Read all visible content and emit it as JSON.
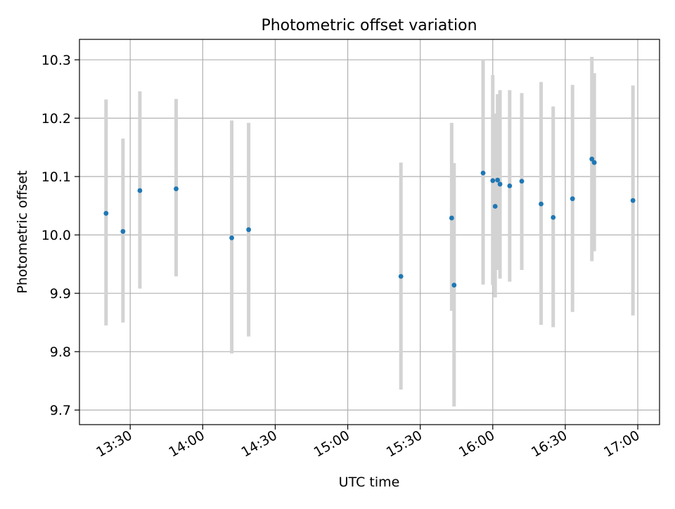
{
  "chart_data": {
    "type": "scatter",
    "title": "Photometric offset variation",
    "xlabel": "UTC time",
    "ylabel": "Photometric offset",
    "xlim": [
      "13:09",
      "17:09"
    ],
    "ylim": [
      9.675,
      10.335
    ],
    "grid": true,
    "x_ticks": [
      "13:30",
      "14:00",
      "14:30",
      "15:00",
      "15:30",
      "16:00",
      "16:30",
      "17:00"
    ],
    "y_ticks": [
      "9.7",
      "9.8",
      "9.9",
      "10.0",
      "10.1",
      "10.2",
      "10.3"
    ],
    "colors": {
      "point": "#1f77b4",
      "errorbar": "#d3d3d3",
      "grid": "#b0b0b0",
      "axes": "#000000"
    },
    "series": [
      {
        "points": [
          {
            "x": "13:20",
            "y": 10.037,
            "low": 9.845,
            "high": 10.232
          },
          {
            "x": "13:27",
            "y": 10.006,
            "low": 9.85,
            "high": 10.165
          },
          {
            "x": "13:34",
            "y": 10.076,
            "low": 9.908,
            "high": 10.246
          },
          {
            "x": "13:49",
            "y": 10.079,
            "low": 9.929,
            "high": 10.233
          },
          {
            "x": "14:12",
            "y": 9.995,
            "low": 9.797,
            "high": 10.196
          },
          {
            "x": "14:19",
            "y": 10.009,
            "low": 9.826,
            "high": 10.192
          },
          {
            "x": "15:22",
            "y": 9.929,
            "low": 9.735,
            "high": 10.124
          },
          {
            "x": "15:43",
            "y": 10.029,
            "low": 9.87,
            "high": 10.192
          },
          {
            "x": "15:44",
            "y": 9.914,
            "low": 9.706,
            "high": 10.123
          },
          {
            "x": "15:56",
            "y": 10.106,
            "low": 9.915,
            "high": 10.3
          },
          {
            "x": "16:00",
            "y": 10.093,
            "low": 9.914,
            "high": 10.274
          },
          {
            "x": "16:01",
            "y": 10.049,
            "low": 9.893,
            "high": 10.208
          },
          {
            "x": "16:02",
            "y": 10.094,
            "low": 9.94,
            "high": 10.241
          },
          {
            "x": "16:03",
            "y": 10.087,
            "low": 9.925,
            "high": 10.248
          },
          {
            "x": "16:07",
            "y": 10.084,
            "low": 9.92,
            "high": 10.248
          },
          {
            "x": "16:12",
            "y": 10.092,
            "low": 9.94,
            "high": 10.243
          },
          {
            "x": "16:20",
            "y": 10.053,
            "low": 9.846,
            "high": 10.262
          },
          {
            "x": "16:25",
            "y": 10.03,
            "low": 9.842,
            "high": 10.22
          },
          {
            "x": "16:33",
            "y": 10.062,
            "low": 9.868,
            "high": 10.257
          },
          {
            "x": "16:41",
            "y": 10.13,
            "low": 9.955,
            "high": 10.305
          },
          {
            "x": "16:42",
            "y": 10.124,
            "low": 9.972,
            "high": 10.277
          },
          {
            "x": "16:58",
            "y": 10.059,
            "low": 9.862,
            "high": 10.256
          }
        ]
      }
    ]
  }
}
